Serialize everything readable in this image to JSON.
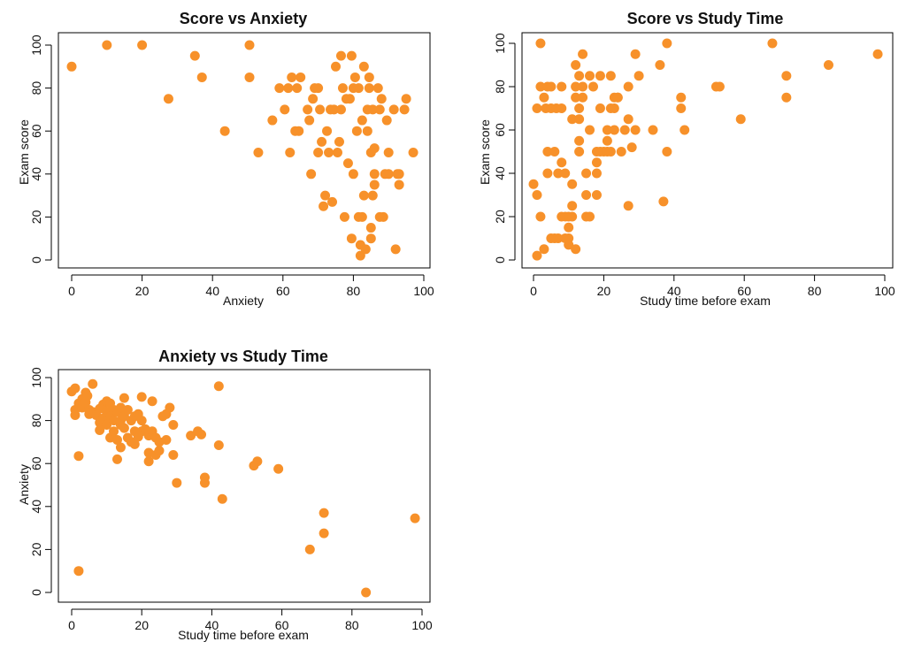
{
  "colors": {
    "point": "#f7912a"
  },
  "chart_data": [
    {
      "type": "scatter",
      "title": "Score vs Anxiety",
      "xlabel": "Anxiety",
      "ylabel": "Exam score",
      "xlim": [
        0,
        100
      ],
      "ylim": [
        0,
        100
      ],
      "xticks": [
        0,
        20,
        40,
        60,
        80,
        100
      ],
      "yticks": [
        0,
        20,
        40,
        60,
        80,
        100
      ],
      "grid": false,
      "points": [
        [
          0,
          90
        ],
        [
          10,
          100
        ],
        [
          20,
          100
        ],
        [
          27.5,
          75
        ],
        [
          35,
          95
        ],
        [
          37,
          85
        ],
        [
          43.5,
          60
        ],
        [
          50.5,
          100
        ],
        [
          50.5,
          85
        ],
        [
          53,
          50
        ],
        [
          57,
          65
        ],
        [
          59,
          80
        ],
        [
          60.5,
          70
        ],
        [
          61.5,
          80
        ],
        [
          62.5,
          85
        ],
        [
          62,
          50
        ],
        [
          63.5,
          60
        ],
        [
          64,
          80
        ],
        [
          64.5,
          60
        ],
        [
          65,
          85
        ],
        [
          67,
          70
        ],
        [
          67.5,
          65
        ],
        [
          68,
          40
        ],
        [
          68.5,
          75
        ],
        [
          69,
          80
        ],
        [
          70,
          80
        ],
        [
          70,
          50
        ],
        [
          70.5,
          70
        ],
        [
          71,
          55
        ],
        [
          71.5,
          25
        ],
        [
          72,
          30
        ],
        [
          72.5,
          60
        ],
        [
          73,
          50
        ],
        [
          73.5,
          70
        ],
        [
          74,
          27
        ],
        [
          74.5,
          70
        ],
        [
          75,
          90
        ],
        [
          75.5,
          50
        ],
        [
          76,
          55
        ],
        [
          76.5,
          70
        ],
        [
          76.5,
          95
        ],
        [
          77,
          80
        ],
        [
          77.5,
          20
        ],
        [
          78,
          75
        ],
        [
          78.5,
          45
        ],
        [
          79,
          75
        ],
        [
          79.5,
          95
        ],
        [
          79.5,
          10
        ],
        [
          80,
          40
        ],
        [
          80,
          80
        ],
        [
          80.5,
          85
        ],
        [
          81,
          60
        ],
        [
          81.5,
          20
        ],
        [
          81.5,
          80
        ],
        [
          82,
          7
        ],
        [
          82,
          2
        ],
        [
          82.5,
          20
        ],
        [
          82.5,
          65
        ],
        [
          83,
          30
        ],
        [
          83,
          90
        ],
        [
          83.5,
          5
        ],
        [
          84,
          70
        ],
        [
          84.5,
          85
        ],
        [
          84.5,
          80
        ],
        [
          85,
          15
        ],
        [
          85,
          10
        ],
        [
          85,
          50
        ],
        [
          85.5,
          70
        ],
        [
          85.5,
          30
        ],
        [
          86,
          52
        ],
        [
          86,
          40
        ],
        [
          86,
          35
        ],
        [
          87,
          80
        ],
        [
          87.5,
          20
        ],
        [
          87.5,
          70
        ],
        [
          88,
          75
        ],
        [
          88.5,
          20
        ],
        [
          89,
          40
        ],
        [
          89.5,
          65
        ],
        [
          90,
          50
        ],
        [
          90,
          40
        ],
        [
          91.5,
          70
        ],
        [
          92,
          5
        ],
        [
          92.5,
          40
        ],
        [
          93,
          35
        ],
        [
          94.5,
          70
        ],
        [
          95,
          75
        ],
        [
          97,
          50
        ],
        [
          93,
          40
        ],
        [
          84,
          60
        ]
      ]
    },
    {
      "type": "scatter",
      "title": "Score vs Study Time",
      "xlabel": "Study time before exam",
      "ylabel": "Exam score",
      "xlim": [
        0,
        100
      ],
      "ylim": [
        0,
        100
      ],
      "xticks": [
        0,
        20,
        40,
        60,
        80,
        100
      ],
      "yticks": [
        0,
        20,
        40,
        60,
        80,
        100
      ],
      "grid": false,
      "points": [
        [
          0,
          35
        ],
        [
          1,
          2
        ],
        [
          1,
          30
        ],
        [
          1,
          70
        ],
        [
          2,
          100
        ],
        [
          2,
          80
        ],
        [
          2,
          20
        ],
        [
          3,
          5
        ],
        [
          3,
          75
        ],
        [
          3.5,
          70
        ],
        [
          4,
          40
        ],
        [
          4,
          50
        ],
        [
          4,
          80
        ],
        [
          5,
          10
        ],
        [
          5,
          70
        ],
        [
          5,
          80
        ],
        [
          6,
          50
        ],
        [
          6,
          10
        ],
        [
          6.5,
          70
        ],
        [
          7,
          10
        ],
        [
          7,
          40
        ],
        [
          8,
          80
        ],
        [
          8,
          70
        ],
        [
          8,
          45
        ],
        [
          8,
          20
        ],
        [
          9,
          10
        ],
        [
          9,
          40
        ],
        [
          9,
          20
        ],
        [
          10,
          10
        ],
        [
          10,
          15
        ],
        [
          10,
          7
        ],
        [
          10,
          20
        ],
        [
          11,
          25
        ],
        [
          11,
          20
        ],
        [
          11,
          35
        ],
        [
          11,
          65
        ],
        [
          12,
          5
        ],
        [
          12,
          90
        ],
        [
          12,
          80
        ],
        [
          12,
          75
        ],
        [
          13,
          85
        ],
        [
          13,
          70
        ],
        [
          13,
          50
        ],
        [
          13,
          55
        ],
        [
          13,
          65
        ],
        [
          14,
          95
        ],
        [
          14,
          75
        ],
        [
          14,
          80
        ],
        [
          15,
          40
        ],
        [
          15,
          30
        ],
        [
          15,
          20
        ],
        [
          16,
          85
        ],
        [
          16,
          60
        ],
        [
          16,
          20
        ],
        [
          17,
          80
        ],
        [
          18,
          50
        ],
        [
          18,
          45
        ],
        [
          18,
          30
        ],
        [
          18,
          40
        ],
        [
          19,
          85
        ],
        [
          19,
          70
        ],
        [
          19,
          50
        ],
        [
          20,
          50
        ],
        [
          21,
          55
        ],
        [
          21,
          60
        ],
        [
          21,
          50
        ],
        [
          22,
          70
        ],
        [
          22,
          85
        ],
        [
          22,
          50
        ],
        [
          23,
          70
        ],
        [
          23,
          75
        ],
        [
          23,
          60
        ],
        [
          24,
          75
        ],
        [
          24,
          75
        ],
        [
          25,
          50
        ],
        [
          26,
          60
        ],
        [
          27,
          80
        ],
        [
          27,
          65
        ],
        [
          27,
          25
        ],
        [
          28,
          52
        ],
        [
          29,
          60
        ],
        [
          29,
          95
        ],
        [
          30,
          85
        ],
        [
          34,
          60
        ],
        [
          36,
          90
        ],
        [
          37,
          27
        ],
        [
          38,
          100
        ],
        [
          38,
          50
        ],
        [
          42,
          75
        ],
        [
          42,
          70
        ],
        [
          43,
          60
        ],
        [
          52,
          80
        ],
        [
          53,
          80
        ],
        [
          59,
          65
        ],
        [
          68,
          100
        ],
        [
          72,
          85
        ],
        [
          72,
          75
        ],
        [
          84,
          90
        ],
        [
          98,
          95
        ]
      ]
    },
    {
      "type": "scatter",
      "title": "Anxiety vs Study Time",
      "xlabel": "Study time before exam",
      "ylabel": "Anxiety",
      "xlim": [
        0,
        100
      ],
      "ylim": [
        0,
        100
      ],
      "xticks": [
        0,
        20,
        40,
        60,
        80,
        100
      ],
      "yticks": [
        0,
        20,
        40,
        60,
        80,
        100
      ],
      "grid": false,
      "points": [
        [
          0,
          93.5
        ],
        [
          1,
          95
        ],
        [
          1,
          85
        ],
        [
          1,
          82.5
        ],
        [
          2,
          10
        ],
        [
          2,
          63.5
        ],
        [
          2,
          88
        ],
        [
          3,
          90
        ],
        [
          3,
          86
        ],
        [
          4,
          93
        ],
        [
          4,
          88.5
        ],
        [
          4.5,
          91.5
        ],
        [
          5,
          85
        ],
        [
          5,
          83
        ],
        [
          6,
          97
        ],
        [
          6,
          84
        ],
        [
          7,
          82.5
        ],
        [
          8,
          85.5
        ],
        [
          8,
          79
        ],
        [
          8,
          75.5
        ],
        [
          9,
          87.5
        ],
        [
          9,
          81
        ],
        [
          10,
          89
        ],
        [
          10,
          84
        ],
        [
          10,
          78
        ],
        [
          11,
          88
        ],
        [
          11,
          82
        ],
        [
          11,
          72
        ],
        [
          12,
          85
        ],
        [
          12,
          80
        ],
        [
          12,
          75
        ],
        [
          13,
          84
        ],
        [
          13,
          71
        ],
        [
          13,
          62
        ],
        [
          14,
          86
        ],
        [
          14,
          78
        ],
        [
          14,
          80
        ],
        [
          14,
          67.5
        ],
        [
          15,
          90.5
        ],
        [
          15,
          82
        ],
        [
          15,
          76.5
        ],
        [
          16,
          85
        ],
        [
          16,
          72
        ],
        [
          17,
          80
        ],
        [
          17,
          70
        ],
        [
          18,
          82
        ],
        [
          18,
          75
        ],
        [
          18,
          69
        ],
        [
          19,
          83
        ],
        [
          19,
          72.5
        ],
        [
          20,
          91
        ],
        [
          20,
          80
        ],
        [
          20,
          75
        ],
        [
          21,
          76
        ],
        [
          22,
          73
        ],
        [
          22,
          65
        ],
        [
          22,
          61
        ],
        [
          23,
          89
        ],
        [
          23,
          75
        ],
        [
          24,
          72
        ],
        [
          24,
          64
        ],
        [
          25,
          70
        ],
        [
          25,
          66
        ],
        [
          26,
          82
        ],
        [
          27,
          71
        ],
        [
          27,
          83
        ],
        [
          28,
          86
        ],
        [
          29,
          78
        ],
        [
          29,
          64
        ],
        [
          30,
          51
        ],
        [
          34,
          73
        ],
        [
          36,
          75
        ],
        [
          37,
          73.5
        ],
        [
          38,
          53.5
        ],
        [
          38,
          51
        ],
        [
          42,
          96
        ],
        [
          42,
          68.5
        ],
        [
          43,
          43.5
        ],
        [
          52,
          59
        ],
        [
          53,
          61
        ],
        [
          59,
          57.5
        ],
        [
          68,
          20
        ],
        [
          72,
          37
        ],
        [
          72,
          27.5
        ],
        [
          84,
          0
        ],
        [
          98,
          34.5
        ]
      ]
    }
  ]
}
